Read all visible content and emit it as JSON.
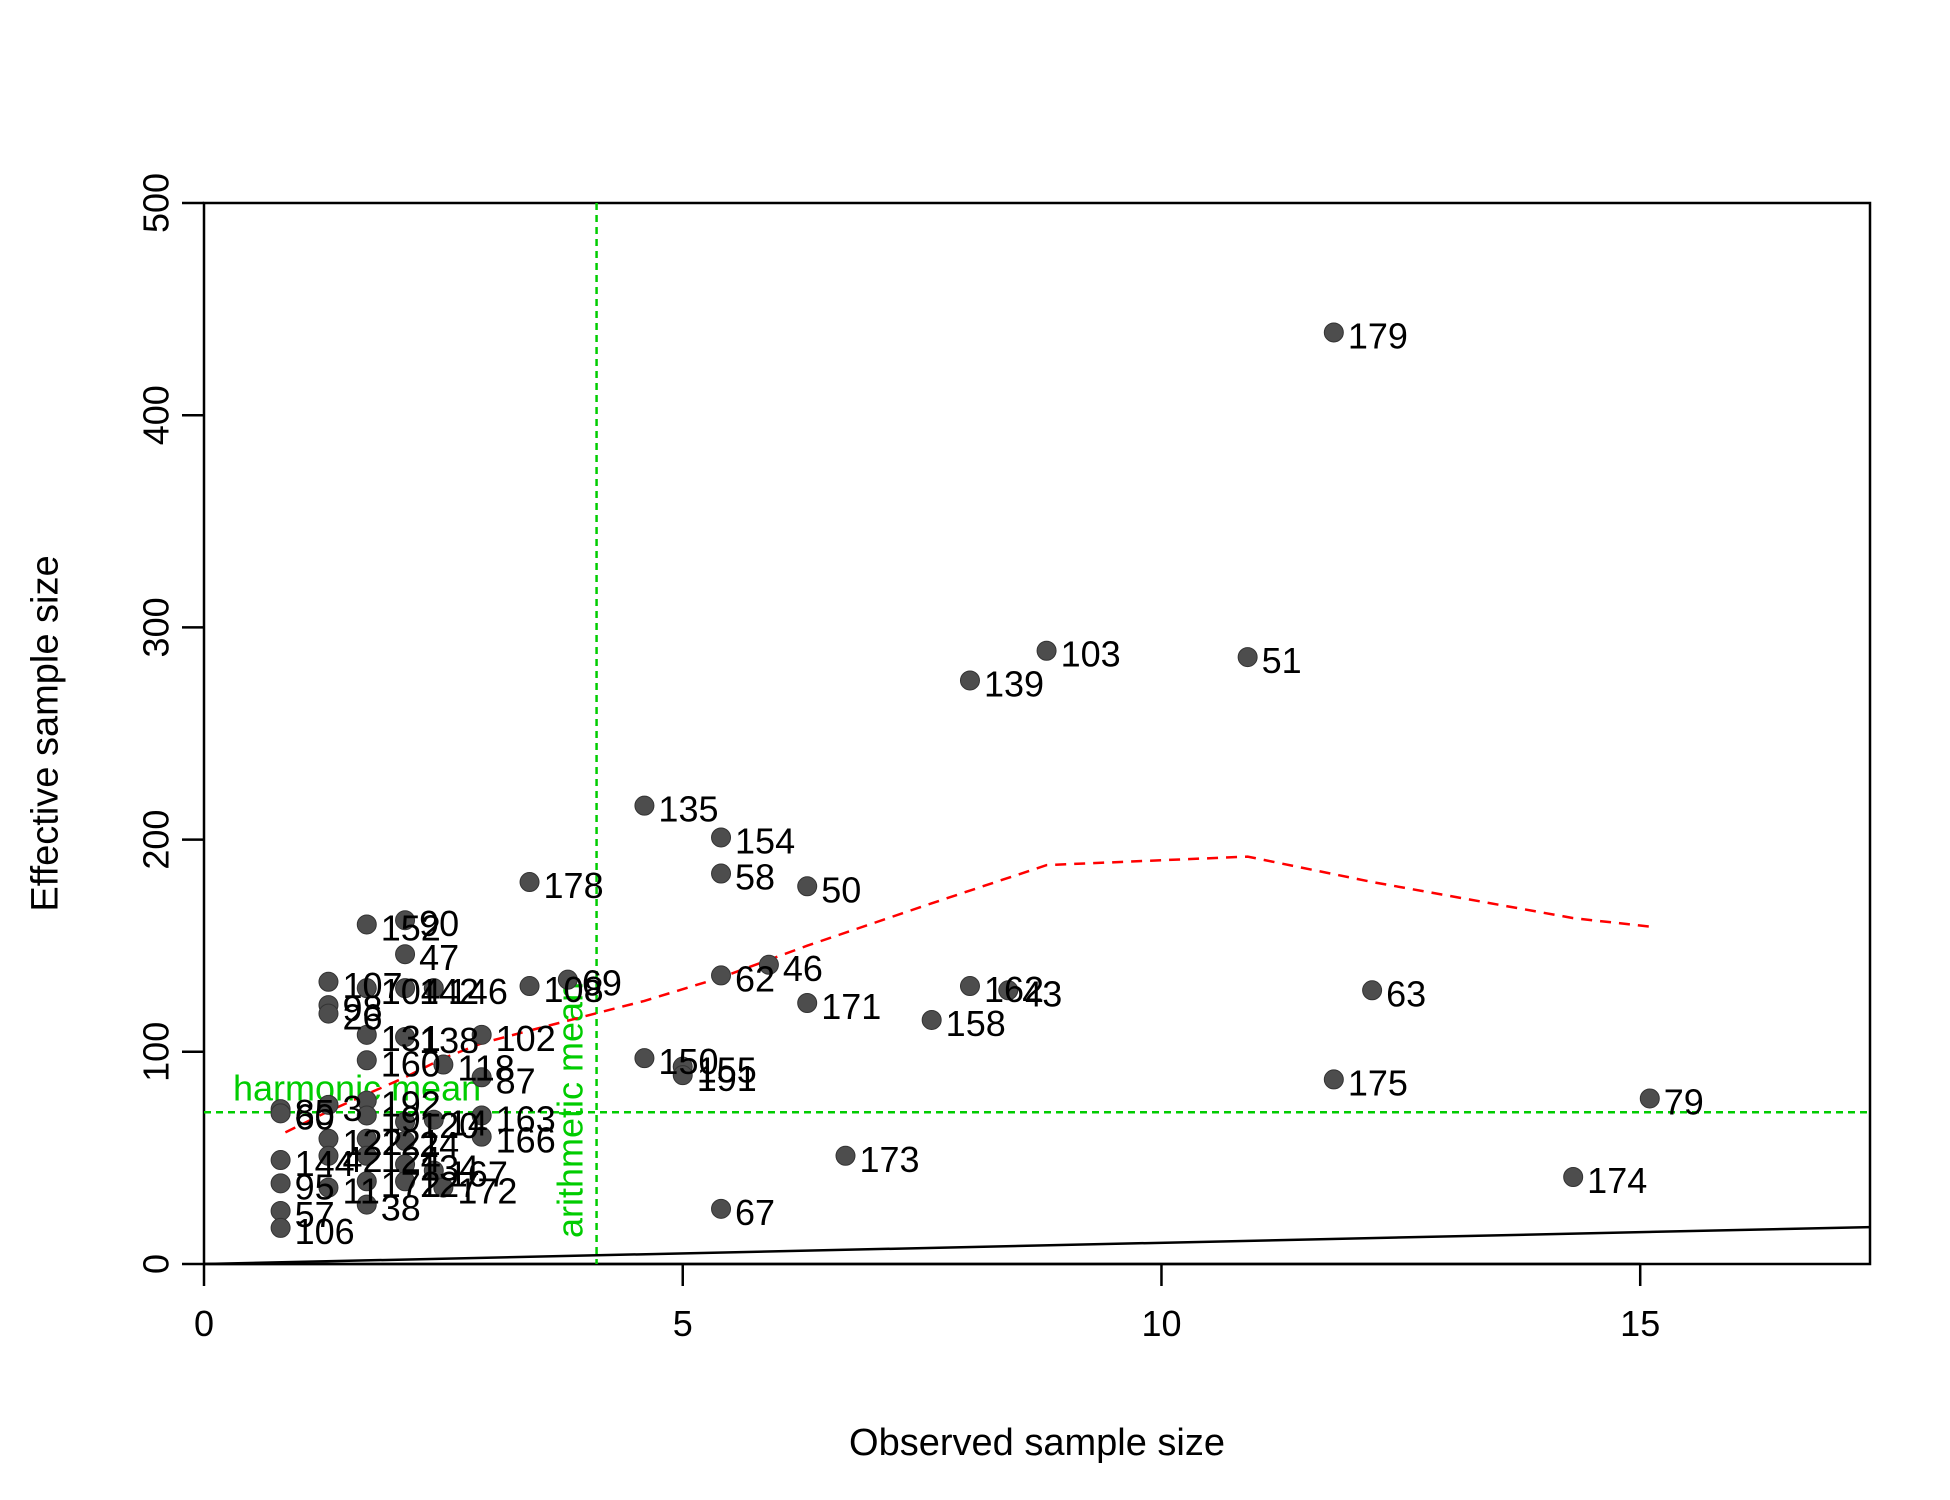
{
  "chart_data": {
    "type": "scatter",
    "xlabel": "Observed sample size",
    "ylabel": "Effective sample size",
    "xlim": [
      0,
      17.4
    ],
    "ylim": [
      0,
      500
    ],
    "x_ticks": [
      0,
      5,
      10,
      15
    ],
    "y_ticks": [
      0,
      100,
      200,
      300,
      400,
      500
    ],
    "grid": false,
    "colors": {
      "points": "#4d4d4d",
      "trend": "#ff0000",
      "reference": "#00cc00",
      "identity_line": "#000000"
    },
    "points": [
      {
        "x": 11.8,
        "y": 439,
        "label": "179"
      },
      {
        "x": 8.8,
        "y": 289,
        "label": "103"
      },
      {
        "x": 10.9,
        "y": 286,
        "label": "51"
      },
      {
        "x": 8.0,
        "y": 275,
        "label": "139"
      },
      {
        "x": 4.6,
        "y": 216,
        "label": "135"
      },
      {
        "x": 5.4,
        "y": 201,
        "label": "154"
      },
      {
        "x": 5.4,
        "y": 184,
        "label": "58"
      },
      {
        "x": 6.3,
        "y": 178,
        "label": "50"
      },
      {
        "x": 3.4,
        "y": 180,
        "label": "178"
      },
      {
        "x": 2.1,
        "y": 162,
        "label": "90"
      },
      {
        "x": 1.7,
        "y": 160,
        "label": "152"
      },
      {
        "x": 2.1,
        "y": 146,
        "label": "47"
      },
      {
        "x": 5.9,
        "y": 141,
        "label": "46"
      },
      {
        "x": 5.4,
        "y": 136,
        "label": "62"
      },
      {
        "x": 6.3,
        "y": 123,
        "label": "171"
      },
      {
        "x": 8.0,
        "y": 131,
        "label": "162"
      },
      {
        "x": 8.4,
        "y": 129,
        "label": "43"
      },
      {
        "x": 7.6,
        "y": 115,
        "label": "158"
      },
      {
        "x": 12.2,
        "y": 129,
        "label": "63"
      },
      {
        "x": 1.3,
        "y": 133,
        "label": "107"
      },
      {
        "x": 1.7,
        "y": 130,
        "label": "104"
      },
      {
        "x": 2.1,
        "y": 130,
        "label": "142"
      },
      {
        "x": 2.4,
        "y": 130,
        "label": "146"
      },
      {
        "x": 3.4,
        "y": 131,
        "label": "108"
      },
      {
        "x": 3.8,
        "y": 134,
        "label": "69"
      },
      {
        "x": 1.3,
        "y": 122,
        "label": "98"
      },
      {
        "x": 1.3,
        "y": 118,
        "label": "26"
      },
      {
        "x": 1.7,
        "y": 108,
        "label": "131"
      },
      {
        "x": 2.1,
        "y": 107,
        "label": "138"
      },
      {
        "x": 2.9,
        "y": 108,
        "label": "102"
      },
      {
        "x": 1.7,
        "y": 96,
        "label": "160"
      },
      {
        "x": 2.5,
        "y": 94,
        "label": "118"
      },
      {
        "x": 2.9,
        "y": 88,
        "label": "87"
      },
      {
        "x": 4.6,
        "y": 97,
        "label": "150"
      },
      {
        "x": 5.0,
        "y": 93,
        "label": "155"
      },
      {
        "x": 5.0,
        "y": 89,
        "label": "191"
      },
      {
        "x": 11.8,
        "y": 87,
        "label": "175"
      },
      {
        "x": 15.1,
        "y": 78,
        "label": "79"
      },
      {
        "x": 0.8,
        "y": 73,
        "label": "85"
      },
      {
        "x": 0.8,
        "y": 71,
        "label": "60"
      },
      {
        "x": 1.3,
        "y": 75,
        "label": "3"
      },
      {
        "x": 1.7,
        "y": 77,
        "label": "192"
      },
      {
        "x": 1.7,
        "y": 70,
        "label": "19"
      },
      {
        "x": 2.1,
        "y": 67,
        "label": "120"
      },
      {
        "x": 2.4,
        "y": 68,
        "label": "14"
      },
      {
        "x": 2.9,
        "y": 70,
        "label": "163"
      },
      {
        "x": 2.9,
        "y": 60,
        "label": "166"
      },
      {
        "x": 1.3,
        "y": 59,
        "label": "122"
      },
      {
        "x": 1.7,
        "y": 59,
        "label": "121"
      },
      {
        "x": 2.1,
        "y": 58,
        "label": "24"
      },
      {
        "x": 6.7,
        "y": 51,
        "label": "173"
      },
      {
        "x": 0.8,
        "y": 49,
        "label": "144"
      },
      {
        "x": 1.3,
        "y": 51,
        "label": "42"
      },
      {
        "x": 1.7,
        "y": 51,
        "label": "124"
      },
      {
        "x": 2.1,
        "y": 47,
        "label": "134"
      },
      {
        "x": 2.4,
        "y": 44,
        "label": "167"
      },
      {
        "x": 0.8,
        "y": 38,
        "label": "95"
      },
      {
        "x": 1.3,
        "y": 36,
        "label": "11"
      },
      {
        "x": 1.7,
        "y": 39,
        "label": "172"
      },
      {
        "x": 2.1,
        "y": 39,
        "label": "127"
      },
      {
        "x": 2.5,
        "y": 36,
        "label": "172"
      },
      {
        "x": 14.3,
        "y": 41,
        "label": "174"
      },
      {
        "x": 0.8,
        "y": 25,
        "label": "57"
      },
      {
        "x": 1.7,
        "y": 28,
        "label": "38"
      },
      {
        "x": 5.4,
        "y": 26,
        "label": "67"
      },
      {
        "x": 0.8,
        "y": 17,
        "label": "106"
      }
    ],
    "trend_line": {
      "style": "dashed",
      "x": [
        0.85,
        1.3,
        1.7,
        2.1,
        2.5,
        2.9,
        3.4,
        4.0,
        4.6,
        5.4,
        6.3,
        7.6,
        8.8,
        10.9,
        12.2,
        14.3,
        15.1
      ],
      "y": [
        62,
        72,
        80,
        88,
        97,
        104,
        110,
        117,
        124,
        135,
        150,
        170,
        188,
        192,
        180,
        163,
        159
      ]
    },
    "identity_line": {
      "x": [
        0,
        17.4
      ],
      "y": [
        0,
        17.4
      ]
    },
    "reference_lines": [
      {
        "orientation": "vertical",
        "value": 4.1,
        "label": "arithmetic mean"
      },
      {
        "orientation": "horizontal",
        "value": 71.5,
        "label": "harmonic mean"
      }
    ]
  }
}
